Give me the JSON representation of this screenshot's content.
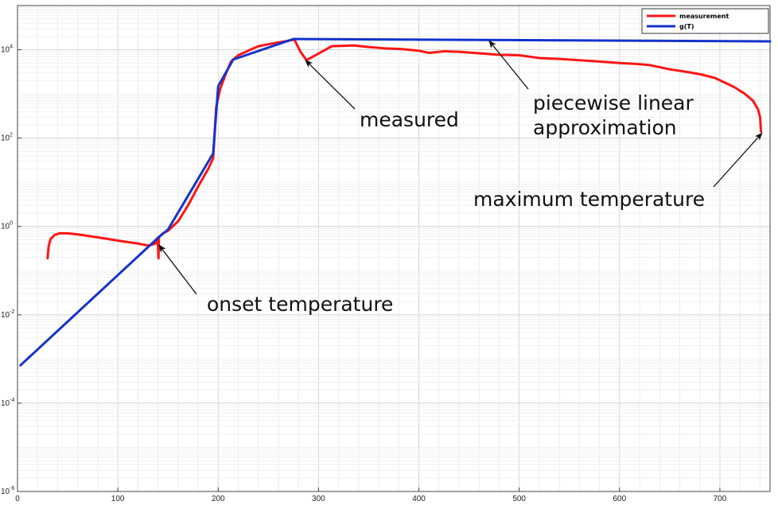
{
  "chart_data": {
    "type": "line",
    "title": "",
    "xlabel": "",
    "ylabel": "",
    "xlim": [
      0,
      750
    ],
    "ylim": [
      1e-06,
      100000.0
    ],
    "yscale": "log",
    "grid": true,
    "legend_position": "top-right",
    "x_ticks": [
      0,
      100,
      200,
      300,
      400,
      500,
      600,
      700
    ],
    "y_ticks": [
      {
        "base": "10",
        "exp": "-6",
        "value": 1e-06
      },
      {
        "base": "10",
        "exp": "-4",
        "value": 0.0001
      },
      {
        "base": "10",
        "exp": "-2",
        "value": 0.01
      },
      {
        "base": "10",
        "exp": "0",
        "value": 1
      },
      {
        "base": "10",
        "exp": "2",
        "value": 100
      },
      {
        "base": "10",
        "exp": "4",
        "value": 10000
      }
    ],
    "series": [
      {
        "name": "measurement",
        "color": "#ff1414",
        "points": [
          [
            30,
            0.19
          ],
          [
            31,
            0.35
          ],
          [
            33,
            0.52
          ],
          [
            37,
            0.64
          ],
          [
            42,
            0.7
          ],
          [
            50,
            0.7
          ],
          [
            60,
            0.66
          ],
          [
            75,
            0.59
          ],
          [
            90,
            0.52
          ],
          [
            105,
            0.46
          ],
          [
            120,
            0.41
          ],
          [
            130,
            0.37
          ],
          [
            135,
            0.39
          ],
          [
            138,
            0.42
          ],
          [
            139.5,
            0.55
          ],
          [
            140,
            0.36
          ],
          [
            140.5,
            0.19
          ],
          [
            141,
            0.58
          ],
          [
            145,
            0.7
          ],
          [
            150,
            0.8
          ],
          [
            160,
            1.3
          ],
          [
            170,
            3.0
          ],
          [
            180,
            8.0
          ],
          [
            190,
            20
          ],
          [
            195,
            35
          ],
          [
            198,
            500
          ],
          [
            202,
            1300
          ],
          [
            208,
            3000
          ],
          [
            213,
            5500
          ],
          [
            220,
            7500
          ],
          [
            230,
            9500
          ],
          [
            240,
            12000
          ],
          [
            255,
            14000
          ],
          [
            270,
            16000
          ],
          [
            276,
            17000
          ],
          [
            282,
            9000
          ],
          [
            288,
            5800
          ],
          [
            297,
            7500
          ],
          [
            305,
            9500
          ],
          [
            313,
            12000
          ],
          [
            335,
            12500
          ],
          [
            350,
            11500
          ],
          [
            365,
            10800
          ],
          [
            382,
            10400
          ],
          [
            400,
            9500
          ],
          [
            410,
            8500
          ],
          [
            425,
            9200
          ],
          [
            440,
            9000
          ],
          [
            460,
            8300
          ],
          [
            480,
            7700
          ],
          [
            500,
            7500
          ],
          [
            520,
            6500
          ],
          [
            540,
            6200
          ],
          [
            560,
            5800
          ],
          [
            580,
            5400
          ],
          [
            600,
            5000
          ],
          [
            615,
            4800
          ],
          [
            630,
            4500
          ],
          [
            650,
            3600
          ],
          [
            665,
            3200
          ],
          [
            680,
            2800
          ],
          [
            695,
            2300
          ],
          [
            705,
            1800
          ],
          [
            715,
            1400
          ],
          [
            725,
            1000
          ],
          [
            733,
            700
          ],
          [
            738,
            450
          ],
          [
            740,
            300
          ],
          [
            741,
            140
          ]
        ]
      },
      {
        "name": "g(T)",
        "color": "#1433cc",
        "points": [
          [
            3,
            0.00072
          ],
          [
            140,
            0.55
          ],
          [
            150,
            0.85
          ],
          [
            195,
            45
          ],
          [
            200,
            1500
          ],
          [
            215,
            6000
          ],
          [
            275,
            17500
          ],
          [
            750,
            15500
          ]
        ]
      }
    ],
    "legend": [
      {
        "label": "measurement",
        "color": "#ff1414"
      },
      {
        "label": "g(T)",
        "color": "#1433cc"
      }
    ],
    "annotations": [
      {
        "id": "measured",
        "lines": [
          "measured"
        ],
        "arrow_to": [
          287,
          5800
        ]
      },
      {
        "id": "piecewise",
        "lines": [
          "piecewise linear",
          "approximation"
        ],
        "arrow_to": [
          470,
          16000
        ]
      },
      {
        "id": "maximum",
        "lines": [
          "maximum temperature"
        ],
        "arrow_to": [
          742,
          130
        ]
      },
      {
        "id": "onset",
        "lines": [
          "onset temperature"
        ],
        "arrow_to": [
          141,
          0.38
        ]
      }
    ]
  }
}
